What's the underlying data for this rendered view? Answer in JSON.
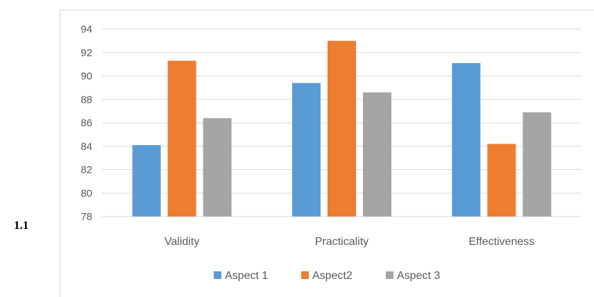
{
  "side_label": "1.1",
  "colors": {
    "series_1": "#5b9bd5",
    "series_2": "#ed7d31",
    "series_3": "#a5a5a5",
    "grid": "#d9d9d9",
    "text": "#595959"
  },
  "chart_data": {
    "type": "bar",
    "title": "",
    "xlabel": "",
    "ylabel": "",
    "categories": [
      "Validity",
      "Practicality",
      "Effectiveness"
    ],
    "series": [
      {
        "name": "Aspect 1",
        "values": [
          84.1,
          89.4,
          91.1
        ]
      },
      {
        "name": "Aspect2",
        "values": [
          91.3,
          93.0,
          84.2
        ]
      },
      {
        "name": "Aspect 3",
        "values": [
          86.4,
          88.6,
          86.9
        ]
      }
    ],
    "ylim": [
      78,
      94
    ],
    "yticks": [
      78,
      80,
      82,
      84,
      86,
      88,
      90,
      92,
      94
    ],
    "grid": true,
    "legend_position": "bottom"
  }
}
